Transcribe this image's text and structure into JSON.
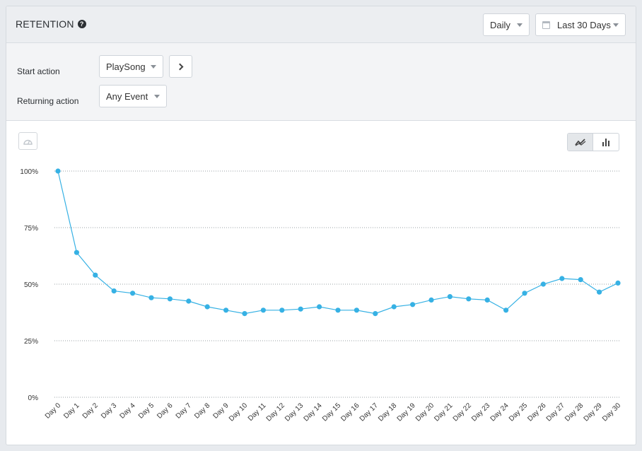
{
  "header": {
    "title": "RETENTION",
    "interval": "Daily",
    "date_range": "Last 30 Days"
  },
  "controls": {
    "start_label": "Start action",
    "start_value": "PlaySong",
    "return_label": "Returning action",
    "return_value": "Any Event"
  },
  "icons": {
    "help": "help-icon",
    "calendar": "calendar-icon",
    "next": "chevron-right-icon",
    "reset_zoom": "dashboard-icon",
    "line": "line-chart-icon",
    "bar": "bar-chart-icon"
  },
  "colors": {
    "series": "#36b1e4",
    "grid": "#9aa0a6"
  },
  "chart_data": {
    "type": "line",
    "categories": [
      "Day 0",
      "Day 1",
      "Day 2",
      "Day 3",
      "Day 4",
      "Day 5",
      "Day 6",
      "Day 7",
      "Day 8",
      "Day 9",
      "Day 10",
      "Day 11",
      "Day 12",
      "Day 13",
      "Day 14",
      "Day 15",
      "Day 16",
      "Day 17",
      "Day 18",
      "Day 19",
      "Day 20",
      "Day 21",
      "Day 22",
      "Day 23",
      "Day 24",
      "Day 25",
      "Day 26",
      "Day 27",
      "Day 28",
      "Day 29",
      "Day 30"
    ],
    "values": [
      100,
      64,
      54,
      47,
      46,
      44,
      43.5,
      42.5,
      40,
      38.5,
      37,
      38.5,
      38.5,
      39,
      40,
      38.5,
      38.5,
      37,
      40,
      41,
      43,
      44.5,
      43.5,
      43,
      38.5,
      46,
      50,
      52.5,
      52,
      46.5,
      50.5
    ],
    "yticks": [
      "100%",
      "75%",
      "50%",
      "25%",
      "0%"
    ],
    "ylim": [
      0,
      100
    ],
    "grid": true
  }
}
